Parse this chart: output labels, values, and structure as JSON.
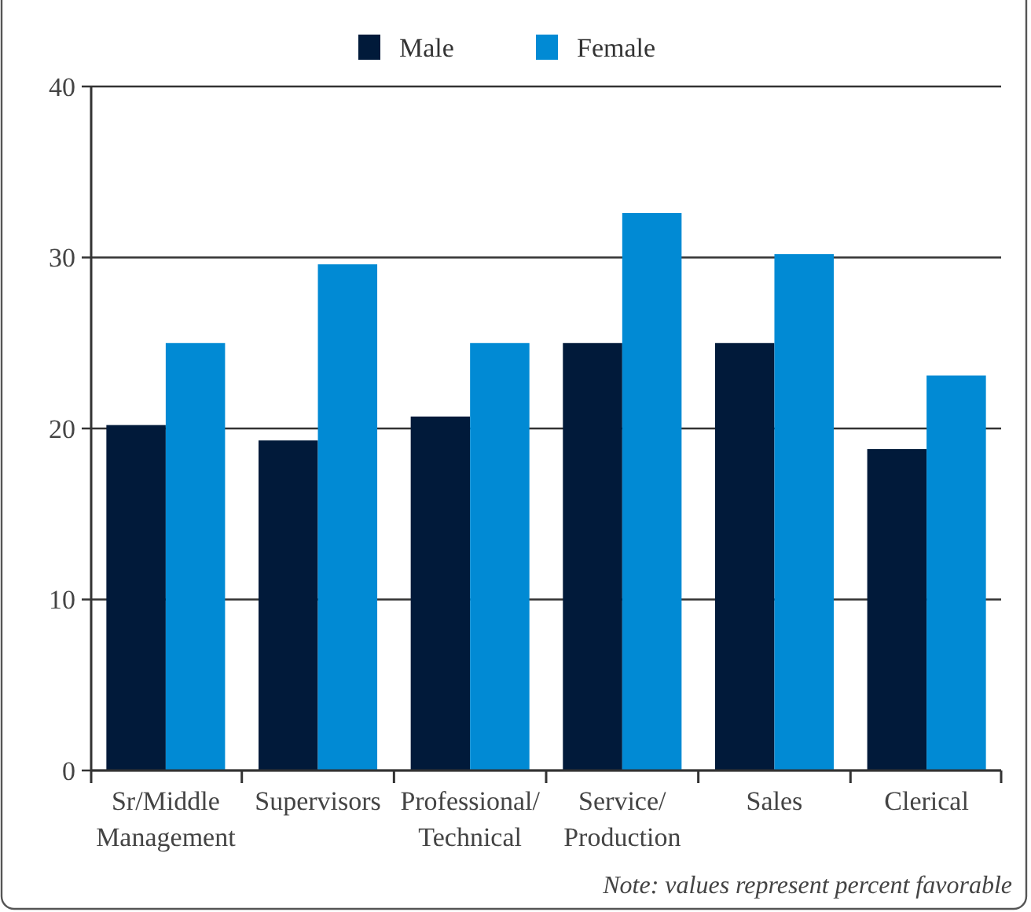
{
  "chart_data": {
    "type": "bar",
    "categories": [
      "Sr/Middle\nManagement",
      "Supervisors",
      "Professional/\nTechnical",
      "Service/\nProduction",
      "Sales",
      "Clerical"
    ],
    "series": [
      {
        "name": "Male",
        "color": "#011a3a",
        "values": [
          20.2,
          19.3,
          20.7,
          25,
          25,
          18.8
        ]
      },
      {
        "name": "Female",
        "color": "#018ad4",
        "values": [
          25,
          29.6,
          25,
          32.6,
          30.2,
          23.1
        ]
      }
    ],
    "ylim": [
      0,
      40
    ],
    "yticks": [
      0,
      10,
      20,
      30,
      40
    ],
    "grid": "y",
    "legend": "top",
    "annotations": [
      "Note: values represent percent favorable"
    ]
  }
}
